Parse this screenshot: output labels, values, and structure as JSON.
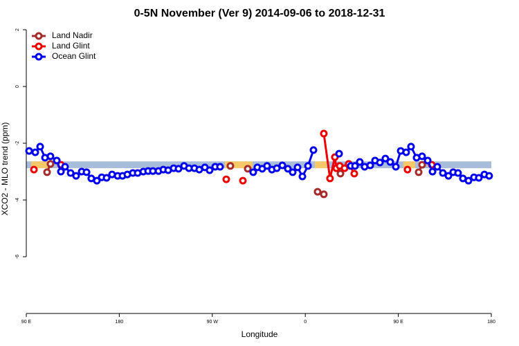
{
  "chart_data": {
    "type": "line",
    "title": "0-5N November (Ver 9)   2014-09-06 to 2018-12-31",
    "x_label": "Longitude",
    "y_label": "XCO2 - MLO trend (ppm)",
    "xlim": [
      90,
      540
    ],
    "ylim": [
      -8,
      2.2
    ],
    "xticks": [
      {
        "value": 90,
        "label": "90 E"
      },
      180,
      {
        "value": 270,
        "label": "90 W"
      },
      {
        "value": 360,
        "label": "0"
      },
      {
        "value": 450,
        "label": "90 E"
      },
      {
        "value": 540,
        "label": "180"
      }
    ],
    "yticks": [
      2,
      0,
      -2,
      -4,
      -6
    ],
    "legend": "top-left",
    "band": {
      "ylim": [
        -2.88,
        -2.64
      ],
      "color": "#a9bcd9",
      "highlight_color": "#f5c96a",
      "highlights": [
        [
          94.7,
          111.4
        ],
        [
          282.2,
          309.0
        ],
        [
          369.2,
          380.6
        ],
        [
          454.9,
          466.3
        ]
      ]
    },
    "series": [
      {
        "name": "Land Nadir",
        "color": "#a52a2a",
        "x": [
          110.1,
          113.4,
          null,
          287.5,
          null,
          304.3,
          null,
          371.9,
          377.9,
          null,
          394.0,
          402.7,
          null,
          469.7,
          473.0
        ],
        "values": [
          -3.02,
          -2.73,
          null,
          -2.8,
          null,
          -2.9,
          null,
          -3.71,
          -3.8,
          null,
          -3.07,
          -2.76,
          null,
          -3.02,
          -2.76
        ]
      },
      {
        "name": "Land Glint",
        "color": "#ee0000",
        "x": [
          97.4,
          null,
          123.5,
          null,
          283.5,
          null,
          299.6,
          null,
          377.9,
          383.9,
          388.6,
          390.0,
          393.3,
          398.0,
          402.0,
          407.4,
          null,
          458.9,
          null,
          482.4
        ],
        "values": [
          -2.93,
          null,
          -2.76,
          null,
          -3.27,
          null,
          -3.32,
          null,
          -1.66,
          -3.24,
          -2.49,
          -2.88,
          -2.8,
          -2.88,
          -2.73,
          -3.07,
          null,
          -2.93,
          null,
          -2.76
        ]
      },
      {
        "name": "Ocean Glint",
        "color": "#0000ee",
        "x": [
          92.7,
          98.7,
          103.4,
          108.1,
          113.4,
          119.5,
          123.5,
          127.5,
          132.9,
          138.2,
          143.6,
          148.3,
          152.9,
          158.3,
          163.0,
          167.7,
          173.0,
          178.4,
          183.1,
          187.8,
          193.1,
          197.8,
          203.2,
          207.9,
          212.5,
          217.9,
          222.6,
          227.3,
          232.6,
          237.3,
          242.7,
          247.4,
          252.7,
          257.4,
          262.8,
          267.4,
          272.8,
          277.5,
          null,
          309.6,
          313.6,
          318.3,
          323.0,
          327.7,
          332.4,
          337.8,
          343.1,
          347.8,
          352.5,
          357.2,
          362.6,
          367.9,
          null,
          392.7,
          null,
          404.0,
          408.1,
          412.7,
          417.4,
          422.8,
          427.5,
          432.2,
          437.5,
          442.2,
          447.6,
          452.3,
          457.6,
          462.3,
          467.7,
          473.0,
          478.4,
          483.1,
          487.7,
          493.1,
          498.5,
          503.1,
          507.8,
          512.5,
          517.9,
          523.2,
          527.9,
          533.3,
          537.9
        ],
        "values": [
          -2.27,
          -2.32,
          -2.12,
          -2.51,
          -2.46,
          -2.61,
          -3.0,
          -2.83,
          -3.05,
          -3.15,
          -3.0,
          -3.02,
          -3.24,
          -3.32,
          -3.2,
          -3.22,
          -3.1,
          -3.15,
          -3.15,
          -3.1,
          -3.05,
          -3.05,
          -3.0,
          -2.98,
          -2.98,
          -2.98,
          -2.93,
          -2.95,
          -2.88,
          -2.9,
          -2.8,
          -2.88,
          -2.88,
          -2.93,
          -2.85,
          -2.95,
          -2.83,
          -2.83,
          null,
          -3.02,
          -2.85,
          -2.9,
          -2.8,
          -2.93,
          -2.88,
          -2.78,
          -2.9,
          -3.02,
          -2.85,
          -3.17,
          -2.8,
          -2.24,
          null,
          -2.37,
          null,
          -2.8,
          -2.8,
          -2.66,
          -2.83,
          -2.78,
          -2.61,
          -2.68,
          -2.54,
          -2.66,
          -2.83,
          -2.27,
          -2.32,
          -2.12,
          -2.51,
          -2.46,
          -2.61,
          -3.0,
          -2.83,
          -3.05,
          -3.15,
          -3.02,
          -3.05,
          -3.24,
          -3.32,
          -3.2,
          -3.22,
          -3.1,
          -3.15
        ]
      }
    ]
  }
}
